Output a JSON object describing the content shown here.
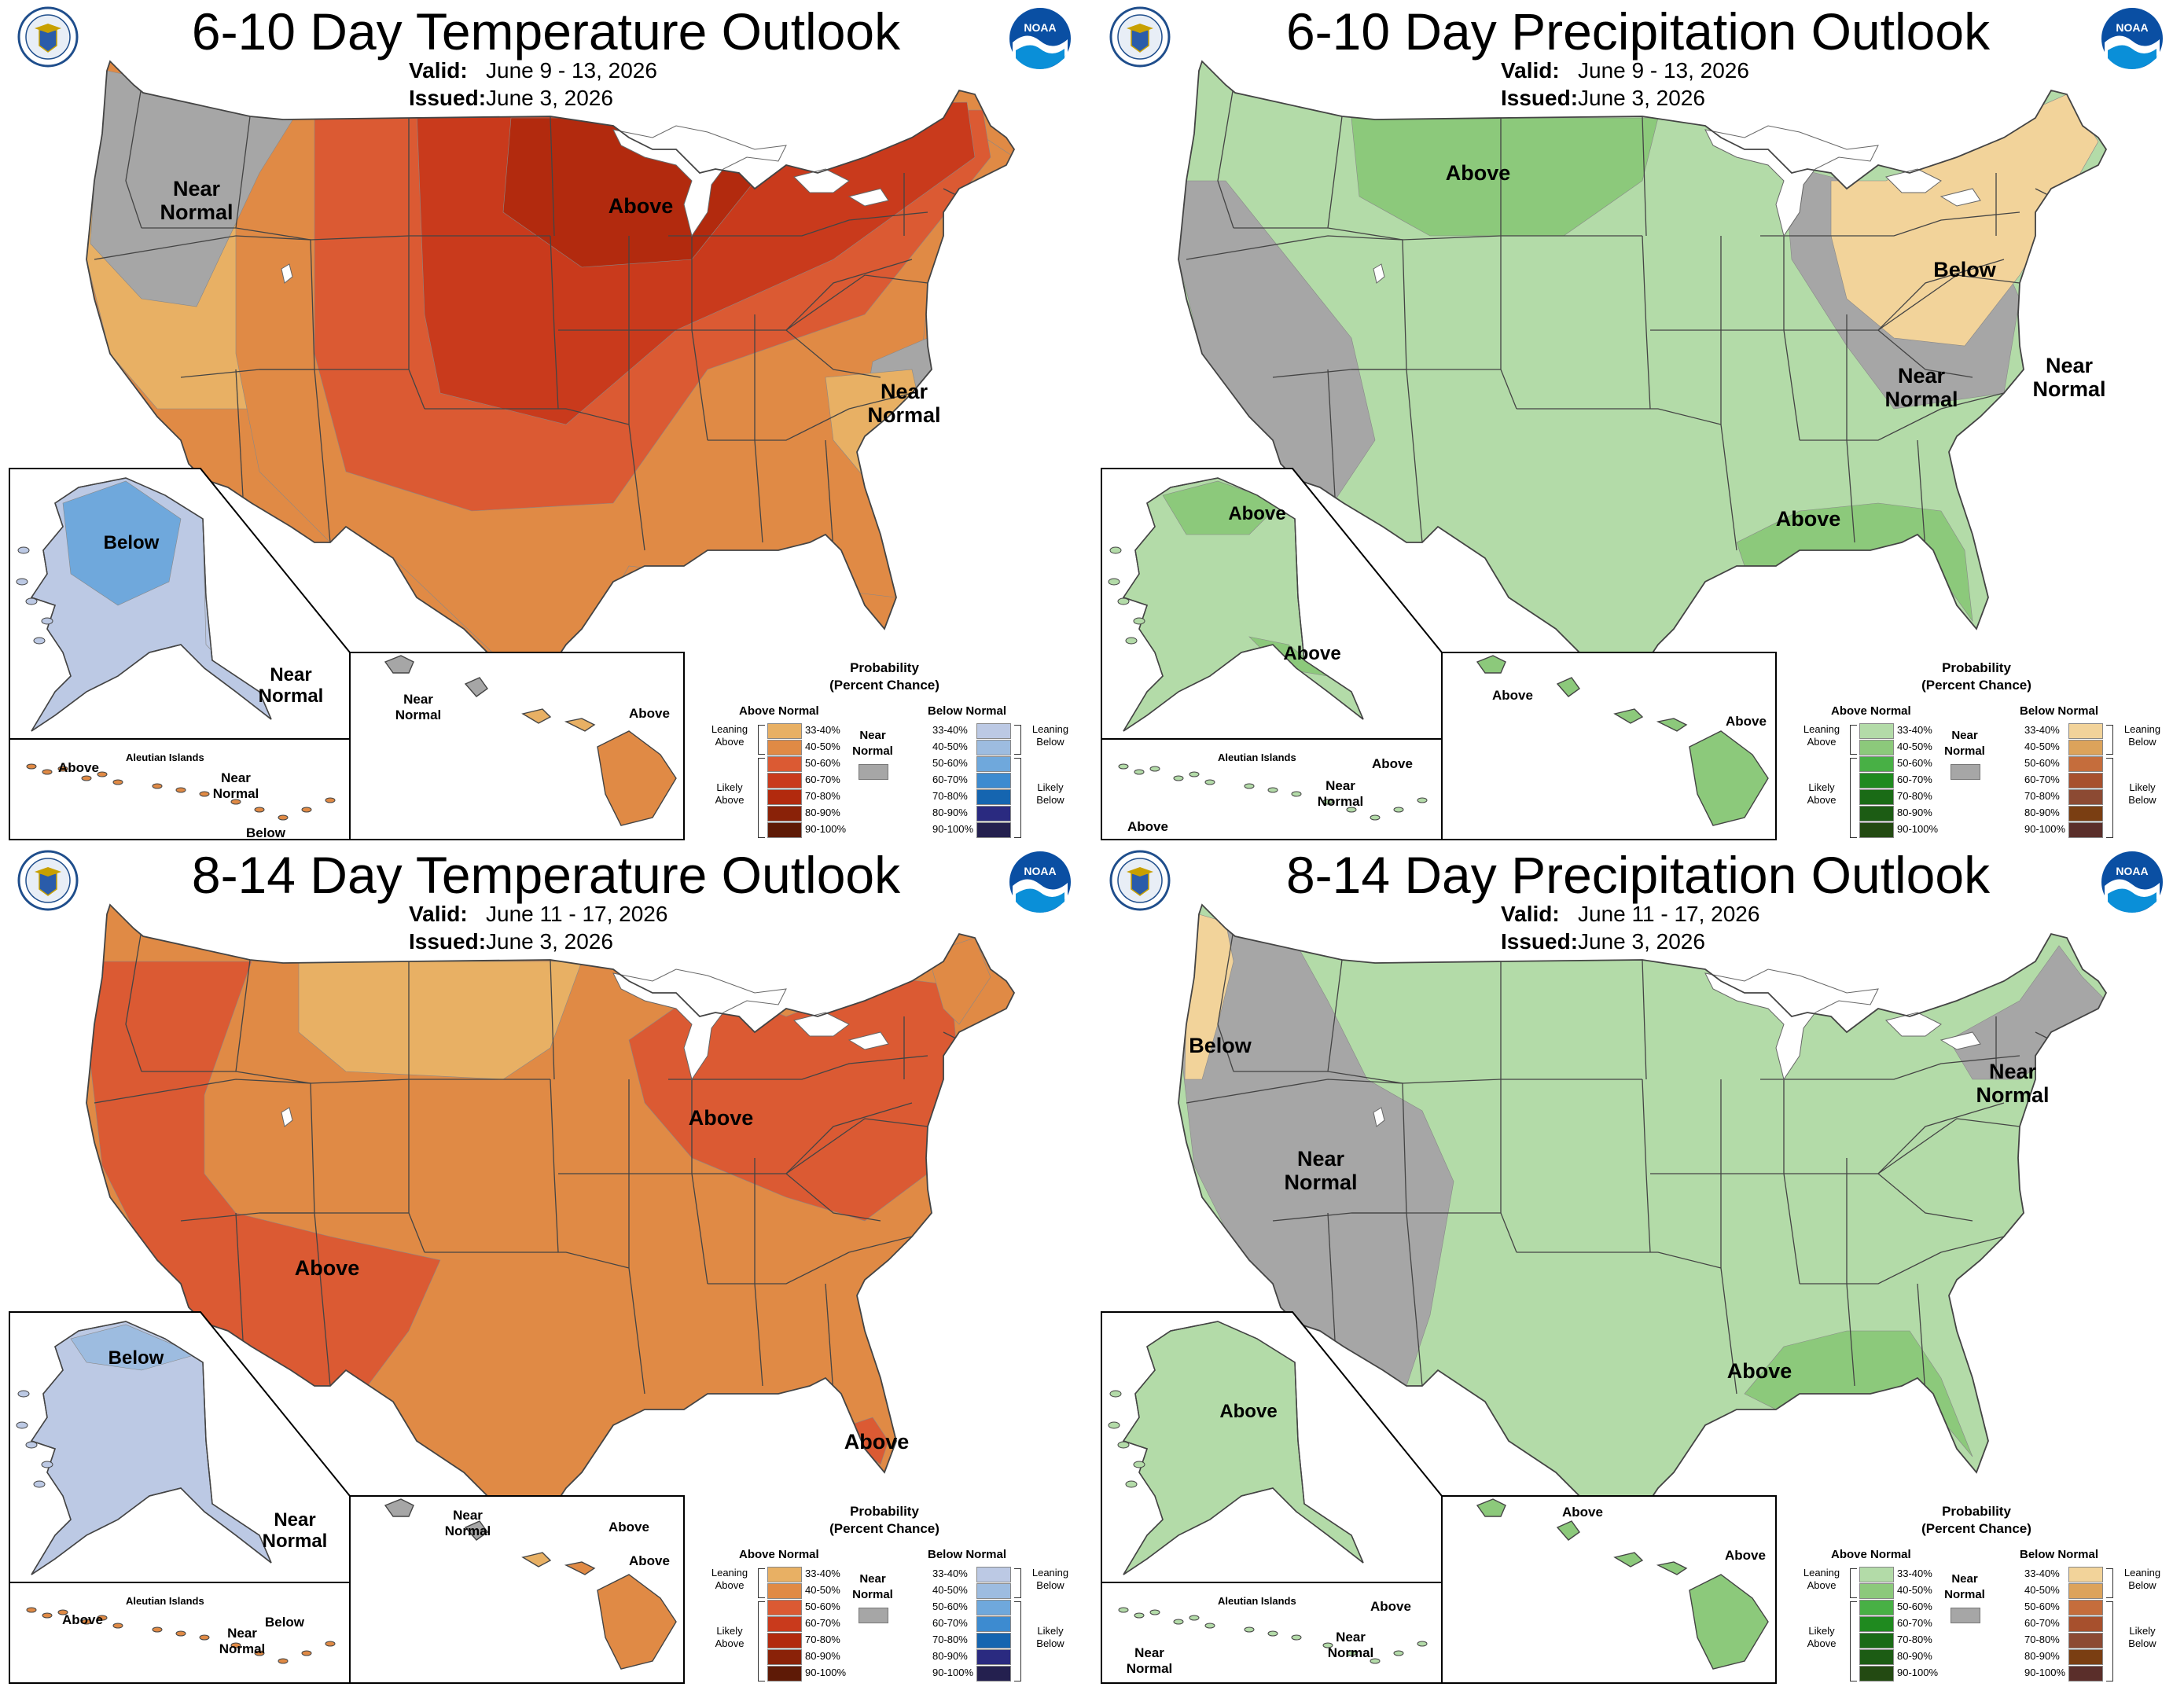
{
  "panels": [
    {
      "title": "6-10 Day Temperature Outlook",
      "valid_label": "Valid:",
      "valid_value": "June 9 - 13, 2026",
      "issued_label": "Issued:",
      "issued_value": "June 3, 2026",
      "kind": "temp",
      "conus_labels": [
        "Near\nNormal",
        "Above",
        "Near\nNormal"
      ],
      "alaska_labels": [
        "Below",
        "Near\nNormal"
      ],
      "aleutian_title": "Aleutian Islands",
      "aleutian_labels": [
        "Above",
        "Near\nNormal",
        "Below"
      ],
      "hawaii_labels": [
        "Near\nNormal",
        "Above"
      ]
    },
    {
      "title": "6-10 Day Precipitation Outlook",
      "valid_label": "Valid:",
      "valid_value": "June 9 - 13, 2026",
      "issued_label": "Issued:",
      "issued_value": "June 3, 2026",
      "kind": "precip",
      "conus_labels": [
        "Above",
        "Near\nNormal",
        "Below",
        "Near\nNormal",
        "Above"
      ],
      "alaska_labels": [
        "Above",
        "Above"
      ],
      "aleutian_title": "Aleutian Islands",
      "aleutian_labels": [
        "Above",
        "Near\nNormal",
        "Above"
      ],
      "hawaii_labels": [
        "Above",
        "Above"
      ]
    },
    {
      "title": "8-14 Day Temperature Outlook",
      "valid_label": "Valid:",
      "valid_value": "June 11 - 17, 2026",
      "issued_label": "Issued:",
      "issued_value": "June 3, 2026",
      "kind": "temp",
      "conus_labels": [
        "Above",
        "Above",
        "Above"
      ],
      "alaska_labels": [
        "Below",
        "Near\nNormal"
      ],
      "aleutian_title": "Aleutian Islands",
      "aleutian_labels": [
        "Above",
        "Near\nNormal",
        "Below"
      ],
      "hawaii_labels": [
        "Near\nNormal",
        "Above",
        "Above"
      ]
    },
    {
      "title": "8-14 Day Precipitation Outlook",
      "valid_label": "Valid:",
      "valid_value": "June 11 - 17, 2026",
      "issued_label": "Issued:",
      "issued_value": "June 3, 2026",
      "kind": "precip",
      "conus_labels": [
        "Below",
        "Near\nNormal",
        "Near\nNormal",
        "Above"
      ],
      "alaska_labels": [
        "Above"
      ],
      "aleutian_title": "Aleutian Islands",
      "aleutian_labels": [
        "Above",
        "Near\nNormal",
        "Near\nNormal"
      ],
      "hawaii_labels": [
        "Above",
        "Above"
      ]
    }
  ],
  "legend_temp": {
    "title": "Probability\n(Percent Chance)",
    "above_head": "Above Normal",
    "below_head": "Below Normal",
    "near": "Near\nNormal",
    "leaning_above": "Leaning\nAbove",
    "likely_above": "Likely\nAbove",
    "leaning_below": "Leaning\nBelow",
    "likely_below": "Likely\nBelow",
    "ranges": [
      "33-40%",
      "40-50%",
      "50-60%",
      "60-70%",
      "70-80%",
      "80-90%",
      "90-100%"
    ],
    "above_colors": [
      "#e8b064",
      "#e08a45",
      "#db5a33",
      "#c93a1c",
      "#b22a0e",
      "#8a2208",
      "#5e1a06"
    ],
    "below_colors": [
      "#bcc9e4",
      "#9dbce0",
      "#6fa8dc",
      "#3d8bd0",
      "#1565b0",
      "#2a2a80",
      "#24204f"
    ],
    "near_color": "#a6a6a6"
  },
  "legend_precip": {
    "title": "Probability\n(Percent Chance)",
    "above_head": "Above Normal",
    "below_head": "Below Normal",
    "near": "Near\nNormal",
    "leaning_above": "Leaning\nAbove",
    "likely_above": "Likely\nAbove",
    "leaning_below": "Leaning\nBelow",
    "likely_below": "Likely\nBelow",
    "ranges": [
      "33-40%",
      "40-50%",
      "50-60%",
      "60-70%",
      "70-80%",
      "80-90%",
      "90-100%"
    ],
    "above_colors": [
      "#b3dba8",
      "#8cc97b",
      "#48b045",
      "#1f8a1f",
      "#1a6b16",
      "#1c5c14",
      "#234a12"
    ],
    "below_colors": [
      "#f2d39a",
      "#dca35b",
      "#c56d3c",
      "#a7502d",
      "#8c4a33",
      "#7a3e12",
      "#5a2e2a"
    ],
    "near_color": "#a6a6a6"
  }
}
